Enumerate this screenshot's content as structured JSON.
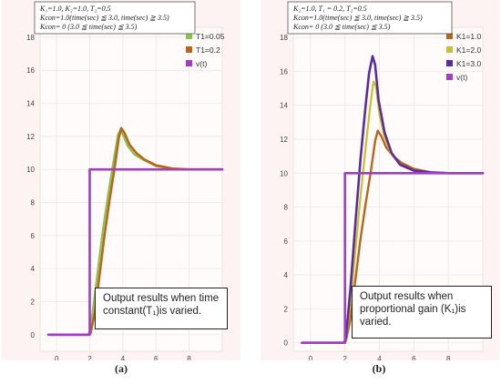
{
  "captions": [
    "(a)",
    "(b)"
  ],
  "chart_data": [
    {
      "type": "line",
      "params": [
        "K₁=1.0, K₂=1.0, T₂=0.5",
        "Kcon=1.0(time(sec) ≦ 3.0, time(sec) ≧ 3.5)",
        "Kcon= 0 (3.0 ≦ time(sec) ≦ 3.5)"
      ],
      "note": "Output results when time constant(T₁)is varied.",
      "xlim": [
        -1,
        10
      ],
      "ylim": [
        -1,
        18.6
      ],
      "xticks": [
        0,
        2,
        4,
        6,
        8
      ],
      "yticks": [
        0,
        2,
        4,
        6,
        8,
        10,
        12,
        14,
        16,
        18
      ],
      "legend_position": "top-right",
      "series": [
        {
          "name": "T1=0.05",
          "color": "#8bc34a",
          "width": 2.2,
          "x": [
            -0.5,
            1.9,
            2.0,
            2.2,
            2.5,
            2.8,
            3.1,
            3.4,
            3.7,
            3.85,
            4.0,
            4.3,
            4.7,
            5.2,
            6.0,
            7.0,
            8.0,
            10.0
          ],
          "y": [
            0,
            0,
            0.2,
            1.6,
            4.0,
            6.4,
            8.4,
            10.3,
            12.1,
            12.4,
            12.1,
            11.4,
            10.9,
            10.6,
            10.2,
            10.05,
            10.0,
            10.0
          ]
        },
        {
          "name": "T1=0.2",
          "color": "#b8651f",
          "width": 2.6,
          "x": [
            -0.5,
            1.95,
            2.05,
            2.3,
            2.6,
            2.9,
            3.2,
            3.5,
            3.75,
            3.9,
            4.1,
            4.4,
            4.8,
            5.3,
            6.0,
            7.0,
            8.0,
            10.0
          ],
          "y": [
            0,
            0,
            0.1,
            1.3,
            3.7,
            6.1,
            8.2,
            10.1,
            11.9,
            12.5,
            12.2,
            11.5,
            11.0,
            10.6,
            10.25,
            10.05,
            10.0,
            10.0
          ]
        },
        {
          "name": "v(t)",
          "color": "#a43cc8",
          "width": 2.6,
          "x": [
            -0.5,
            2.0,
            2.0,
            10.0
          ],
          "y": [
            0,
            0,
            10,
            10
          ]
        }
      ]
    },
    {
      "type": "line",
      "params": [
        "K₂=1.0, T₁ = 0.2, T₂=0.5",
        "Kcon=1.0(time(sec) ≦ 3.0, time(sec) ≧ 3.5)",
        "Kcon= 0 (3.0 ≦ time(sec) ≦ 3.5)"
      ],
      "note": "Output results when proportional gain (K₁)is varied.",
      "xlim": [
        -1,
        10
      ],
      "ylim": [
        -0.5,
        18.6
      ],
      "xticks": [
        0,
        2,
        4,
        6,
        8
      ],
      "yticks": [
        0,
        2,
        4,
        6,
        8,
        10,
        12,
        14,
        16,
        18
      ],
      "legend_position": "top-right",
      "series": [
        {
          "name": "K1=1.0",
          "color": "#b5651d",
          "width": 2.4,
          "x": [
            -0.5,
            1.95,
            2.05,
            2.3,
            2.6,
            2.9,
            3.2,
            3.5,
            3.75,
            3.9,
            4.1,
            4.4,
            4.8,
            5.3,
            6.0,
            7.0,
            8.0,
            10.0
          ],
          "y": [
            0,
            0,
            0.1,
            1.3,
            3.7,
            6.1,
            8.2,
            10.1,
            11.9,
            12.5,
            12.2,
            11.5,
            11.0,
            10.6,
            10.25,
            10.05,
            10.0,
            10.0
          ]
        },
        {
          "name": "K1=2.0",
          "color": "#c9c12a",
          "width": 2.2,
          "x": [
            -0.5,
            1.95,
            2.05,
            2.3,
            2.6,
            2.9,
            3.2,
            3.45,
            3.65,
            3.8,
            4.0,
            4.3,
            4.7,
            5.2,
            6.0,
            7.0,
            8.0,
            10.0
          ],
          "y": [
            0,
            0,
            0.2,
            2.2,
            5.4,
            8.6,
            11.5,
            13.8,
            15.4,
            15.1,
            13.5,
            12.1,
            11.1,
            10.5,
            10.15,
            10.05,
            10.0,
            10.0
          ]
        },
        {
          "name": "K1=3.0",
          "color": "#5a2ca0",
          "width": 2.6,
          "x": [
            -0.5,
            1.95,
            2.05,
            2.3,
            2.6,
            2.9,
            3.2,
            3.4,
            3.6,
            3.75,
            3.95,
            4.3,
            4.7,
            5.2,
            6.0,
            7.0,
            8.0,
            10.0
          ],
          "y": [
            0,
            0,
            0.3,
            3.0,
            7.0,
            10.8,
            14.0,
            15.9,
            16.9,
            16.4,
            14.3,
            12.4,
            11.2,
            10.5,
            10.15,
            10.05,
            10.0,
            10.0
          ]
        },
        {
          "name": "v(t)",
          "color": "#a43cc8",
          "width": 2.6,
          "x": [
            -0.5,
            2.0,
            2.0,
            10.0
          ],
          "y": [
            0,
            0,
            10,
            10
          ]
        }
      ]
    }
  ]
}
